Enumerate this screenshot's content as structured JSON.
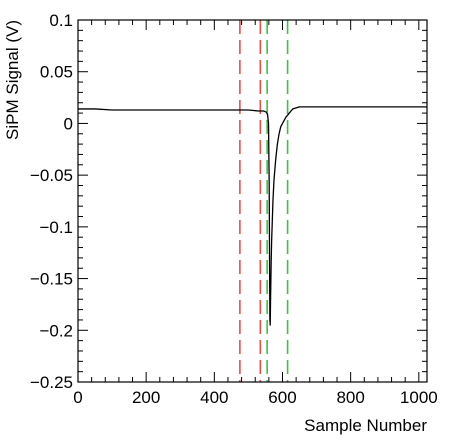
{
  "chart_data": {
    "type": "line",
    "title": "",
    "xlabel": "Sample Number",
    "ylabel": "SiPM Signal (V)",
    "xlim": [
      0,
      1024
    ],
    "ylim": [
      -0.25,
      0.1
    ],
    "grid": false,
    "legend": "none",
    "x_ticks": [
      0,
      200,
      400,
      600,
      800,
      1000
    ],
    "x_tick_labels": [
      "0",
      "200",
      "400",
      "600",
      "800",
      "1000"
    ],
    "y_ticks": [
      -0.25,
      -0.2,
      -0.15,
      -0.1,
      -0.05,
      0,
      0.05,
      0.1
    ],
    "y_tick_labels": [
      "−0.25",
      "−0.2",
      "−0.15",
      "−0.1",
      "−0.05",
      "0",
      "0.05",
      "0.1"
    ],
    "series": [
      {
        "color": "#000000",
        "x": [
          0,
          50,
          100,
          150,
          200,
          250,
          300,
          350,
          400,
          450,
          500,
          530,
          545,
          552,
          556,
          559,
          561,
          562,
          563,
          564,
          565,
          566,
          567,
          568,
          570,
          572,
          575,
          580,
          585,
          590,
          595,
          600,
          605,
          610,
          615,
          620,
          625,
          630,
          640,
          650,
          700,
          750,
          800,
          850,
          900,
          950,
          1000,
          1024
        ],
        "y": [
          0.014,
          0.014,
          0.013,
          0.013,
          0.013,
          0.013,
          0.013,
          0.013,
          0.013,
          0.013,
          0.013,
          0.012,
          0.012,
          0.011,
          0.009,
          0.0,
          -0.06,
          -0.13,
          -0.19,
          -0.195,
          -0.17,
          -0.15,
          -0.13,
          -0.115,
          -0.095,
          -0.075,
          -0.055,
          -0.035,
          -0.02,
          -0.01,
          -0.003,
          0.0,
          0.003,
          0.006,
          0.008,
          0.01,
          0.012,
          0.014,
          0.015,
          0.016,
          0.016,
          0.016,
          0.016,
          0.016,
          0.016,
          0.016,
          0.016,
          0.016
        ]
      }
    ],
    "vertical_markers": [
      {
        "x": 475,
        "color": "#e05050",
        "style": "dashed"
      },
      {
        "x": 535,
        "color": "#e05050",
        "style": "dashed"
      },
      {
        "x": 555,
        "color": "#40c040",
        "style": "dashed"
      },
      {
        "x": 615,
        "color": "#40c040",
        "style": "dashed"
      }
    ]
  }
}
